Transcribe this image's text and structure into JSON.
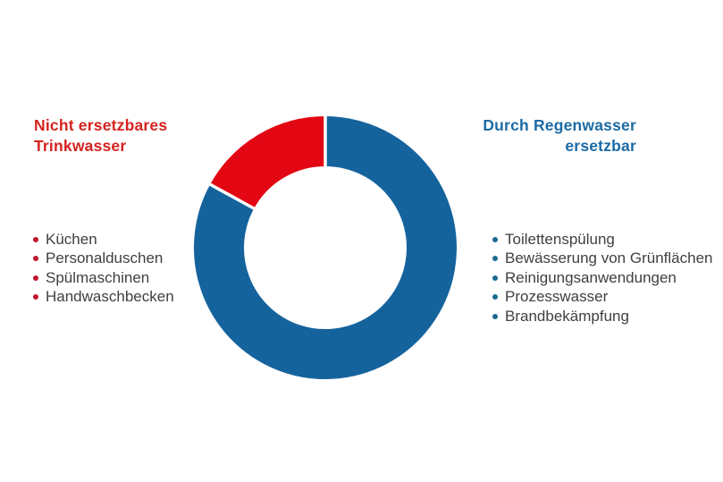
{
  "figure": {
    "background_color": "#ffffff"
  },
  "chart_data": {
    "type": "pie",
    "subtype": "donut",
    "donut_hole_ratio": 0.62,
    "segment_separator_color": "#ffffff",
    "values_are_percent": true,
    "slices_clockwise_from_top": [
      {
        "label": "Durch Regenwasser ersetzbar",
        "value": 83,
        "color": "#15639d"
      },
      {
        "label": "Nicht ersetzbares Trinkwasser",
        "value": 17,
        "color": "#e30613"
      }
    ]
  },
  "left_group": {
    "title": "Nicht ersetzbares Trinkwasser",
    "title_color": "#d5231f",
    "bullet_color": "#c1142f",
    "text_color": "#3f3f3f",
    "items": [
      "Küchen",
      "Personalduschen",
      "Spülmaschinen",
      "Handwaschbecken"
    ]
  },
  "right_group": {
    "title": "Durch Regenwasser ersetzbar",
    "title_color": "#1c6aa5",
    "bullet_color": "#1d6a90",
    "text_color": "#3f3f3f",
    "items": [
      "Toilettenspülung",
      "Bewässerung von Grünflächen",
      "Reinigungsanwendungen",
      "Prozesswasser",
      "Brandbekämpfung"
    ]
  }
}
